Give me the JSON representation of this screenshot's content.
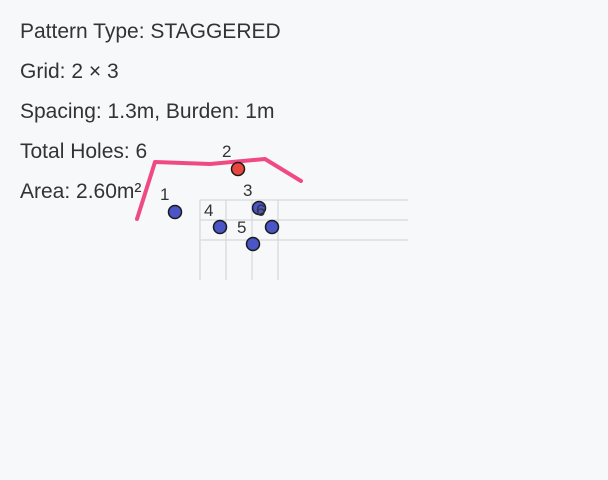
{
  "info": {
    "pattern_type": "Pattern Type: STAGGERED",
    "grid": "Grid: 2 × 3",
    "spacing_burden": "Spacing: 1.3m, Burden: 1m",
    "total_holes": "Total Holes: 6",
    "area": "Area: 2.60m²"
  },
  "colors": {
    "background": "#f7f8fa",
    "outline": "#ef4b82",
    "hole_default": "#4a56c8",
    "hole_selected": "#e8473f",
    "grid": "#d5d7da",
    "text": "#333333"
  },
  "holes": [
    {
      "label": "1",
      "selected": false
    },
    {
      "label": "2",
      "selected": true
    },
    {
      "label": "3",
      "selected": false
    },
    {
      "label": "4",
      "selected": false
    },
    {
      "label": "5",
      "selected": false
    },
    {
      "label": "6",
      "selected": false
    }
  ]
}
